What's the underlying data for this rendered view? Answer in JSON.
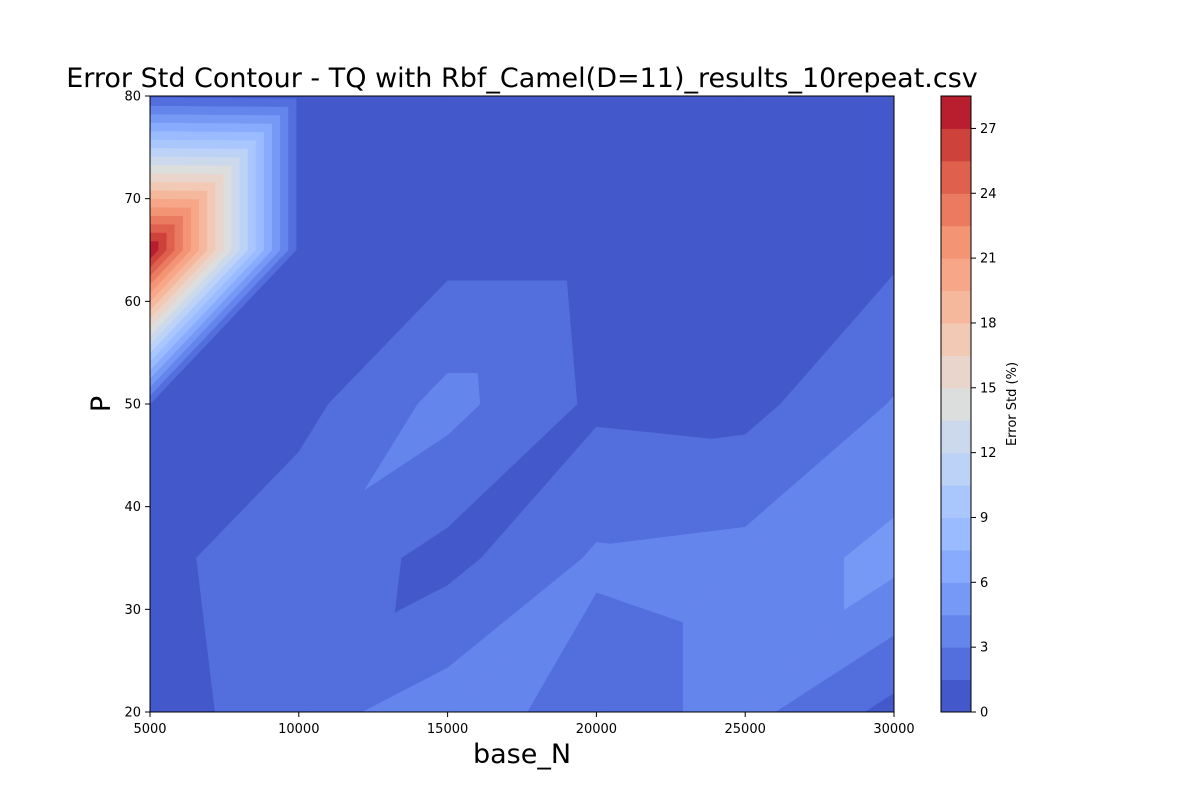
{
  "chart_data": {
    "type": "heatmap",
    "subtype": "filled-contour",
    "title": "Error Std Contour - TQ with Rbf_Camel(D=11)_results_10repeat.csv",
    "xlabel": "base_N",
    "ylabel": "P",
    "colorbar_label": "Error Std (%)",
    "colormap": "coolwarm",
    "xlim": [
      5000,
      30000
    ],
    "ylim": [
      20,
      80
    ],
    "x_ticks": [
      5000,
      10000,
      15000,
      20000,
      25000,
      30000
    ],
    "y_ticks": [
      20,
      30,
      40,
      50,
      60,
      70,
      80
    ],
    "x_tick_labels": [
      "5000",
      "10000",
      "15000",
      "20000",
      "25000",
      "30000"
    ],
    "y_tick_labels": [
      "20",
      "30",
      "40",
      "50",
      "60",
      "70",
      "80"
    ],
    "colorbar_range": [
      0,
      28.5
    ],
    "colorbar_ticks": [
      0,
      3,
      6,
      9,
      12,
      15,
      18,
      21,
      24,
      27
    ],
    "colorbar_tick_labels": [
      "0",
      "3",
      "6",
      "9",
      "12",
      "15",
      "18",
      "21",
      "24",
      "27"
    ],
    "level_step": 1.5,
    "level_colors": [
      "#4358cb",
      "#536edd",
      "#6485ec",
      "#7699f6",
      "#88abfd",
      "#9abbff",
      "#aac7fd",
      "#bcd2f7",
      "#ccd9ed",
      "#dcdddd",
      "#e9d5cb",
      "#f2c9b4",
      "#f6b89c",
      "#f7a688",
      "#f39475",
      "#ea7b60",
      "#de604d",
      "#cd423b",
      "#b91e2f"
    ],
    "x_values": [
      5000,
      10000,
      15000,
      20000,
      25000,
      30000
    ],
    "y_values": [
      20,
      35,
      50,
      65,
      80
    ],
    "z_values": [
      [
        0.8,
        2.4,
        3.8,
        2.3,
        3.5,
        1.0
      ],
      [
        1.0,
        2.6,
        1.0,
        3.2,
        3.5,
        5.0
      ],
      [
        1.5,
        1.0,
        3.5,
        1.2,
        1.0,
        3.1
      ],
      [
        28.5,
        1.0,
        1.0,
        1.0,
        0.9,
        1.2
      ],
      [
        1.2,
        1.0,
        1.0,
        1.1,
        1.0,
        1.0
      ]
    ]
  }
}
